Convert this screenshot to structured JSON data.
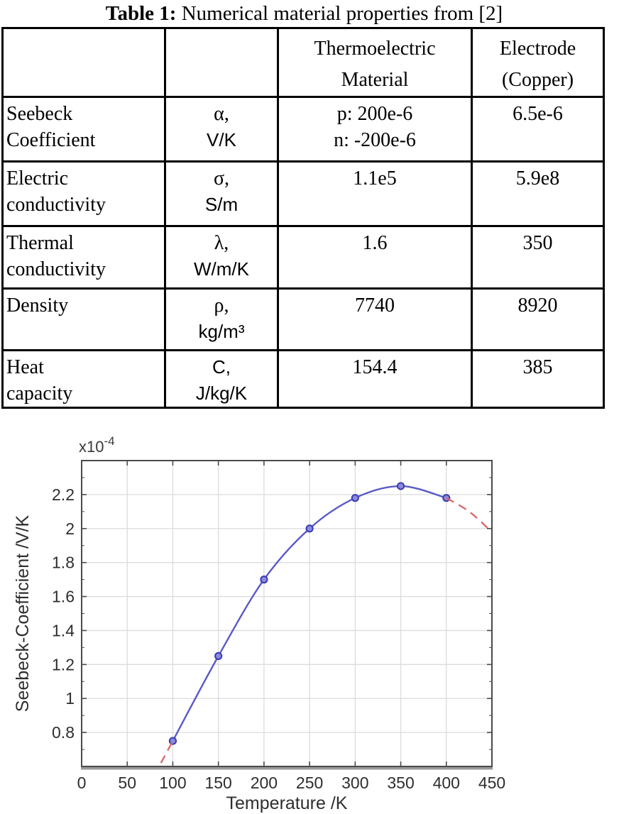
{
  "table_section": {
    "title": {
      "prefix": "Table 1:",
      "rest": " Numerical material properties from [2]"
    },
    "header": {
      "thermo": [
        "Thermoelectric",
        "Material"
      ],
      "electrode": [
        "Electrode",
        "(Copper)"
      ]
    },
    "rows": [
      {
        "property": [
          "Seebeck",
          "Coefficient"
        ],
        "symbol": "α,",
        "unit": "V/K",
        "thermo": [
          "p: 200e-6",
          "n: -200e-6"
        ],
        "electrode": "6.5e-6"
      },
      {
        "property": [
          "Electric",
          "conductivity"
        ],
        "symbol": "σ,",
        "unit": "S/m",
        "thermo": [
          "1.1e5"
        ],
        "electrode": "5.9e8"
      },
      {
        "property": [
          "Thermal",
          "conductivity"
        ],
        "symbol": "λ,",
        "unit": "W/m/K",
        "thermo": [
          "1.6"
        ],
        "electrode": "350"
      },
      {
        "property": [
          "Density"
        ],
        "symbol": "ρ,",
        "unit": "kg/m³",
        "thermo": [
          "7740"
        ],
        "electrode": "8920"
      },
      {
        "property": [
          "Heat",
          "capacity"
        ],
        "symbol": "C,",
        "unit": "J/kg/K",
        "thermo": [
          "154.4"
        ],
        "electrode": "385"
      }
    ]
  },
  "chart_data": {
    "type": "line",
    "title": "",
    "xlabel": "Temperature /K",
    "ylabel": "Seebeck-Coefficient /V/K",
    "y_axis_multiplier": {
      "base": "x10",
      "exponent": "-4"
    },
    "xlim": [
      0,
      450
    ],
    "ylim": [
      0.6,
      2.4
    ],
    "x_ticks": [
      0,
      50,
      100,
      150,
      200,
      250,
      300,
      350,
      400,
      450
    ],
    "x_tick_labels": [
      "0",
      "50",
      "100",
      "150",
      "200",
      "250",
      "300",
      "350",
      "400",
      "450"
    ],
    "y_ticks": [
      0.8,
      1,
      1.2,
      1.4,
      1.6,
      1.8,
      2,
      2.2
    ],
    "y_tick_labels": [
      "0.8",
      "1",
      "1.2",
      "1.4",
      "1.6",
      "1.8",
      "2",
      "2.2"
    ],
    "y_minor_tick_step": 0.1,
    "grid": true,
    "legend": "none",
    "series": [
      {
        "name": "seebeck-coefficient-data",
        "style": "solid",
        "color": "#5a5ac8",
        "marker": "circle",
        "marker_fill": "#8a8ade",
        "marker_stroke": "#3c3cb4",
        "x": [
          100,
          150,
          200,
          250,
          300,
          350,
          400
        ],
        "y": [
          0.75,
          1.25,
          1.7,
          2.0,
          2.18,
          2.25,
          2.18
        ]
      },
      {
        "name": "extrapolation-left",
        "style": "dashed",
        "color": "#d96a6a",
        "marker": "none",
        "x": [
          87,
          100
        ],
        "y": [
          0.62,
          0.75
        ]
      },
      {
        "name": "extrapolation-right",
        "style": "dashed",
        "color": "#d96a6a",
        "marker": "none",
        "x": [
          400,
          425,
          450
        ],
        "y": [
          2.18,
          2.1,
          1.98
        ]
      }
    ],
    "colors": {
      "grid": "#dcdcdc",
      "frame": "#4a4a4a",
      "x_axis_thick": "#9a9a9a"
    }
  }
}
